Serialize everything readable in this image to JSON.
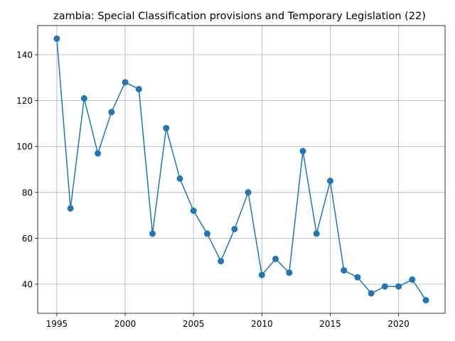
{
  "chart_data": {
    "type": "line",
    "title": "zambia: Special Classification provisions and Temporary Legislation (22)",
    "xlabel": "",
    "ylabel": "",
    "xlim": [
      1993.6,
      2023.4
    ],
    "ylim": [
      27.3,
      152.7
    ],
    "xticks": [
      1995,
      2000,
      2005,
      2010,
      2015,
      2020
    ],
    "yticks": [
      40,
      60,
      80,
      100,
      120,
      140
    ],
    "grid": true,
    "color": "#1f77b4",
    "marker": "circle",
    "x": [
      1995,
      1996,
      1997,
      1998,
      1999,
      2000,
      2001,
      2002,
      2003,
      2004,
      2005,
      2006,
      2007,
      2008,
      2009,
      2010,
      2011,
      2012,
      2013,
      2014,
      2015,
      2016,
      2017,
      2018,
      2019,
      2020,
      2021,
      2022
    ],
    "y": [
      147,
      73,
      121,
      97,
      115,
      128,
      125,
      62,
      108,
      86,
      72,
      62,
      50,
      64,
      80,
      44,
      51,
      45,
      98,
      62,
      85,
      46,
      43,
      36,
      39,
      39,
      42,
      33
    ]
  }
}
